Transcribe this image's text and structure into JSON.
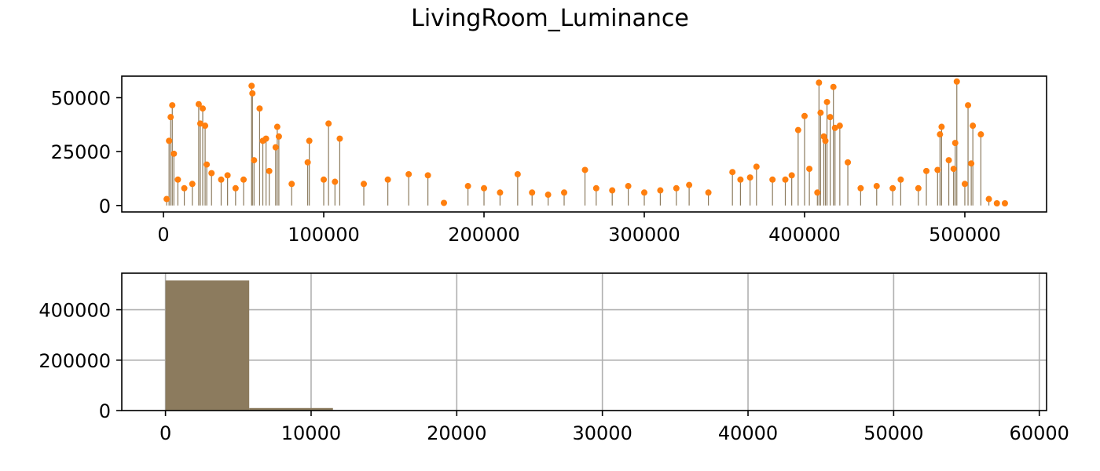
{
  "figure": {
    "title": "LivingRoom_Luminance"
  },
  "colors": {
    "stem_line": "#8c7b5e",
    "marker": "#ff7f0e",
    "hist_bar": "#8c7b5e",
    "grid": "#b0b0b0"
  },
  "chart_data": [
    {
      "type": "stem",
      "title": "",
      "xlabel": "",
      "ylabel": "",
      "xlim": [
        -26000,
        551000
      ],
      "ylim": [
        -3000,
        60000
      ],
      "x_ticks": [
        0,
        100000,
        200000,
        300000,
        400000,
        500000
      ],
      "x_tick_labels": [
        "0",
        "100000",
        "200000",
        "300000",
        "400000",
        "500000"
      ],
      "y_ticks": [
        0,
        25000,
        50000
      ],
      "y_tick_labels": [
        "0",
        "25000",
        "50000"
      ],
      "grid": false,
      "series": [
        {
          "x": [
            2000,
            3500,
            4500,
            5500,
            6500,
            9000,
            13000,
            18000,
            22000,
            23000,
            24500,
            26000,
            27000,
            30000,
            36000,
            40000,
            45000,
            50000,
            55000,
            55500,
            56500,
            60000,
            62000,
            64000,
            66000,
            70000,
            71000,
            72000,
            80000,
            90000,
            91000,
            100000,
            103000,
            107000,
            110000,
            125000,
            140000,
            153000,
            165000,
            175000,
            190000,
            200000,
            210000,
            221000,
            230000,
            240000,
            250000,
            263000,
            270000,
            280000,
            290000,
            300000,
            310000,
            320000,
            328000,
            340000,
            355000,
            360000,
            366000,
            370000,
            380000,
            388000,
            392000,
            396000,
            400000,
            403000,
            408000,
            409000,
            410000,
            412000,
            413000,
            414000,
            416000,
            418000,
            419000,
            422000,
            427000,
            435000,
            445000,
            455000,
            460000,
            471000,
            476000,
            483000,
            484500,
            485500,
            490000,
            493000,
            494000,
            495000,
            500000,
            502000,
            504000,
            505000,
            510000,
            515000,
            520000,
            525000
          ],
          "y": [
            3000,
            30000,
            41000,
            46500,
            24000,
            12000,
            8000,
            10000,
            47000,
            38000,
            45000,
            37000,
            19000,
            15000,
            12000,
            14000,
            8000,
            12000,
            55500,
            52000,
            21000,
            45000,
            30000,
            31000,
            16000,
            27000,
            36500,
            32000,
            10000,
            20000,
            30000,
            12000,
            38000,
            11000,
            31000,
            10000,
            12000,
            14500,
            14000,
            1200,
            9000,
            8000,
            6000,
            14500,
            6000,
            5000,
            6000,
            16500,
            8000,
            7000,
            9000,
            6000,
            7000,
            8000,
            9500,
            6000,
            15500,
            12000,
            13000,
            18000,
            12000,
            12000,
            14000,
            35000,
            41500,
            17000,
            6000,
            57000,
            43000,
            32000,
            30000,
            48000,
            41000,
            55000,
            36000,
            37000,
            20000,
            8000,
            9000,
            8000,
            12000,
            8000,
            16000,
            16500,
            33000,
            36500,
            21000,
            17000,
            29000,
            57500,
            10000,
            46500,
            19500,
            37000,
            33000,
            3000,
            1000,
            1000
          ]
        }
      ]
    },
    {
      "type": "histogram",
      "title": "",
      "xlabel": "",
      "ylabel": "",
      "xlim": [
        -3000,
        60500
      ],
      "ylim": [
        0,
        545000
      ],
      "x_ticks": [
        0,
        10000,
        20000,
        30000,
        40000,
        50000,
        60000
      ],
      "x_tick_labels": [
        "0",
        "10000",
        "20000",
        "30000",
        "40000",
        "50000",
        "60000"
      ],
      "y_ticks": [
        0,
        200000,
        400000
      ],
      "y_tick_labels": [
        "0",
        "200000",
        "400000"
      ],
      "grid": true,
      "bin_edges": [
        0,
        5750,
        11500,
        17250,
        23000,
        28750,
        34500,
        40250,
        46000,
        51750,
        57500
      ],
      "counts": [
        516000,
        10000,
        600,
        150,
        80,
        50,
        30,
        25,
        15,
        10
      ]
    }
  ]
}
